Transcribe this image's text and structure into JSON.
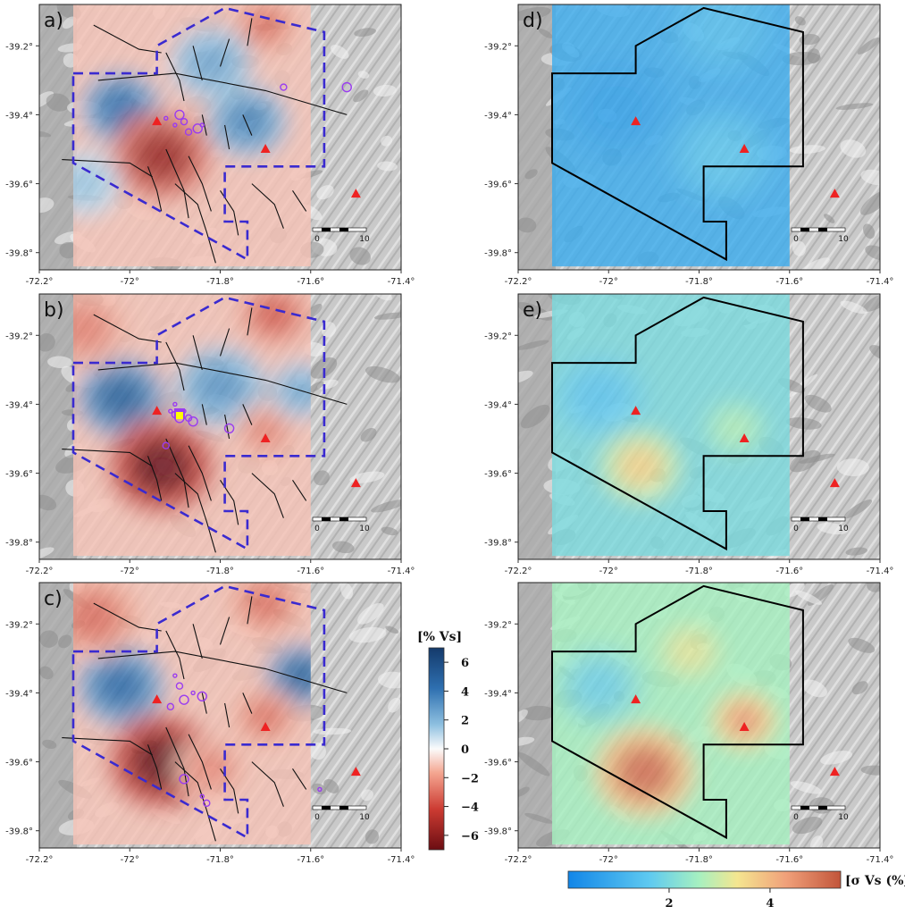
{
  "chart_data": [
    {
      "type": "heatmap",
      "panel": "a)",
      "variable": "dVs",
      "xlim": [
        -72.2,
        -71.4
      ],
      "ylim": [
        -39.85,
        -39.08
      ],
      "xticks": [
        "-72.2°",
        "-72°",
        "-71.8°",
        "-71.6°",
        "-71.4°"
      ],
      "yticks": [
        "-39.2°",
        "-39.4°",
        "-39.6°",
        "-39.8°"
      ],
      "volcanoes": [
        [
          -71.94,
          -39.42
        ],
        [
          -71.7,
          -39.5
        ],
        [
          -71.5,
          -39.63
        ]
      ],
      "earthquakes": [
        [
          -71.9,
          -39.43
        ],
        [
          -71.88,
          -39.42
        ],
        [
          -71.85,
          -39.44
        ],
        [
          -71.92,
          -39.41
        ],
        [
          -71.87,
          -39.45
        ],
        [
          -71.89,
          -39.4
        ],
        [
          -71.84,
          -39.43
        ],
        [
          -71.66,
          -39.32
        ],
        [
          -71.52,
          -39.32
        ]
      ],
      "anomalies": [
        {
          "lon": -72.02,
          "lat": -39.38,
          "r": 0.09,
          "v": 4.5
        },
        {
          "lon": -71.93,
          "lat": -39.52,
          "r": 0.11,
          "v": -5.5
        },
        {
          "lon": -71.74,
          "lat": -39.42,
          "r": 0.09,
          "v": 3.5
        },
        {
          "lon": -71.7,
          "lat": -39.14,
          "r": 0.07,
          "v": -3.0
        },
        {
          "lon": -71.82,
          "lat": -39.25,
          "r": 0.09,
          "v": 2.5
        },
        {
          "lon": -72.1,
          "lat": -39.6,
          "r": 0.08,
          "v": 1.5
        }
      ]
    },
    {
      "type": "heatmap",
      "panel": "b)",
      "variable": "dVs",
      "xlim": [
        -72.2,
        -71.4
      ],
      "ylim": [
        -39.85,
        -39.08
      ],
      "xticks": [
        "-72.2°",
        "-72°",
        "-71.8°",
        "-71.6°",
        "-71.4°"
      ],
      "yticks": [
        "-39.2°",
        "-39.4°",
        "-39.6°",
        "-39.8°"
      ],
      "volcanoes": [
        [
          -71.94,
          -39.42
        ],
        [
          -71.7,
          -39.5
        ],
        [
          -71.5,
          -39.63
        ]
      ],
      "earthquakes": [
        [
          -71.91,
          -39.42
        ],
        [
          -71.9,
          -39.43
        ],
        [
          -71.89,
          -39.44
        ],
        [
          -71.88,
          -39.42
        ],
        [
          -71.87,
          -39.44
        ],
        [
          -71.86,
          -39.45
        ],
        [
          -71.9,
          -39.4
        ],
        [
          -71.92,
          -39.52
        ],
        [
          -71.78,
          -39.47
        ]
      ],
      "anomalies": [
        {
          "lon": -72.02,
          "lat": -39.38,
          "r": 0.1,
          "v": 5.0
        },
        {
          "lon": -71.93,
          "lat": -39.58,
          "r": 0.12,
          "v": -7.0
        },
        {
          "lon": -71.8,
          "lat": -39.35,
          "r": 0.1,
          "v": 3.0
        },
        {
          "lon": -71.7,
          "lat": -39.48,
          "r": 0.07,
          "v": -2.5
        },
        {
          "lon": -71.68,
          "lat": -39.14,
          "r": 0.08,
          "v": -3.5
        },
        {
          "lon": -71.62,
          "lat": -39.36,
          "r": 0.07,
          "v": 2.5
        },
        {
          "lon": -72.1,
          "lat": -39.18,
          "r": 0.1,
          "v": -2.5
        }
      ]
    },
    {
      "type": "heatmap",
      "panel": "c)",
      "variable": "dVs",
      "xlim": [
        -72.2,
        -71.4
      ],
      "ylim": [
        -39.85,
        -39.08
      ],
      "xticks": [
        "-72.2°",
        "-72°",
        "-71.8°",
        "-71.6°",
        "-71.4°"
      ],
      "yticks": [
        "-39.2°",
        "-39.4°",
        "-39.6°",
        "-39.8°"
      ],
      "volcanoes": [
        [
          -71.94,
          -39.42
        ],
        [
          -71.7,
          -39.5
        ],
        [
          -71.5,
          -39.63
        ]
      ],
      "earthquakes": [
        [
          -71.9,
          -39.35
        ],
        [
          -71.89,
          -39.38
        ],
        [
          -71.88,
          -39.42
        ],
        [
          -71.86,
          -39.4
        ],
        [
          -71.91,
          -39.44
        ],
        [
          -71.84,
          -39.41
        ],
        [
          -71.84,
          -39.7
        ],
        [
          -71.83,
          -39.72
        ],
        [
          -71.88,
          -39.65
        ],
        [
          -71.58,
          -39.68
        ]
      ],
      "anomalies": [
        {
          "lon": -72.02,
          "lat": -39.38,
          "r": 0.1,
          "v": 4.5
        },
        {
          "lon": -71.93,
          "lat": -39.6,
          "r": 0.12,
          "v": -7.0
        },
        {
          "lon": -71.62,
          "lat": -39.35,
          "r": 0.08,
          "v": 5.0
        },
        {
          "lon": -71.7,
          "lat": -39.47,
          "r": 0.07,
          "v": -3.0
        },
        {
          "lon": -72.08,
          "lat": -39.18,
          "r": 0.1,
          "v": -3.0
        },
        {
          "lon": -71.7,
          "lat": -39.14,
          "r": 0.08,
          "v": -3.0
        },
        {
          "lon": -71.82,
          "lat": -39.62,
          "r": 0.08,
          "v": -2.5
        }
      ]
    },
    {
      "type": "heatmap",
      "panel": "d)",
      "variable": "sigma",
      "xlim": [
        -72.2,
        -71.4
      ],
      "ylim": [
        -39.85,
        -39.08
      ],
      "xticks": [
        "-72.2°",
        "-72°",
        "-71.8°",
        "-71.6°",
        "-71.4°"
      ],
      "yticks": [
        "-39.2°",
        "-39.4°",
        "-39.6°",
        "-39.8°"
      ],
      "volcanoes": [
        [
          -71.94,
          -39.42
        ],
        [
          -71.7,
          -39.5
        ],
        [
          -71.5,
          -39.63
        ]
      ],
      "base": 0.9,
      "anomalies": [
        {
          "lon": -71.98,
          "lat": -39.38,
          "r": 0.12,
          "v": -0.3
        },
        {
          "lon": -71.75,
          "lat": -39.52,
          "r": 0.12,
          "v": 0.6
        },
        {
          "lon": -71.75,
          "lat": -39.15,
          "r": 0.12,
          "v": 0.4
        }
      ]
    },
    {
      "type": "heatmap",
      "panel": "e)",
      "variable": "sigma",
      "xlim": [
        -72.2,
        -71.4
      ],
      "ylim": [
        -39.85,
        -39.08
      ],
      "xticks": [
        "-72.2°",
        "-72°",
        "-71.8°",
        "-71.6°",
        "-71.4°"
      ],
      "yticks": [
        "-39.2°",
        "-39.4°",
        "-39.6°",
        "-39.8°"
      ],
      "volcanoes": [
        [
          -71.94,
          -39.42
        ],
        [
          -71.7,
          -39.5
        ],
        [
          -71.5,
          -39.63
        ]
      ],
      "base": 2.0,
      "anomalies": [
        {
          "lon": -71.93,
          "lat": -39.58,
          "r": 0.09,
          "v": 1.6
        },
        {
          "lon": -71.72,
          "lat": -39.47,
          "r": 0.07,
          "v": 0.7
        },
        {
          "lon": -72.02,
          "lat": -39.38,
          "r": 0.1,
          "v": -0.5
        }
      ]
    },
    {
      "type": "heatmap",
      "panel": "",
      "variable": "sigma",
      "xlim": [
        -72.2,
        -71.4
      ],
      "ylim": [
        -39.85,
        -39.08
      ],
      "xticks": [
        "-72.2°",
        "-72°",
        "-71.8°",
        "-71.6°",
        "-71.4°"
      ],
      "yticks": [
        "-39.2°",
        "-39.4°",
        "-39.6°",
        "-39.8°"
      ],
      "volcanoes": [
        [
          -71.94,
          -39.42
        ],
        [
          -71.7,
          -39.5
        ],
        [
          -71.5,
          -39.63
        ]
      ],
      "base": 2.6,
      "anomalies": [
        {
          "lon": -71.92,
          "lat": -39.63,
          "r": 0.11,
          "v": 2.4
        },
        {
          "lon": -71.7,
          "lat": -39.48,
          "r": 0.07,
          "v": 1.8
        },
        {
          "lon": -72.02,
          "lat": -39.38,
          "r": 0.1,
          "v": -0.8
        },
        {
          "lon": -71.82,
          "lat": -39.28,
          "r": 0.07,
          "v": 0.6
        }
      ]
    }
  ],
  "colorbar_vs": {
    "title": "[% Vs]",
    "range": [
      -7,
      7
    ],
    "ticks": [
      6,
      4,
      2,
      0,
      -2,
      -4,
      -6
    ],
    "tick_labels": [
      "6",
      "4",
      "2",
      "0",
      "−2",
      "−4",
      "−6"
    ]
  },
  "colorbar_sigma": {
    "title": "[σ Vs (%) ]",
    "range": [
      0,
      5.4
    ],
    "ticks": [
      2,
      4
    ],
    "tick_labels": [
      "2",
      "4"
    ]
  },
  "scale_bar": {
    "labels": [
      "0",
      "10"
    ]
  },
  "colors": {
    "volcano": "#ee2222",
    "earthquake": "#9a3cf0",
    "fault": "#111111",
    "region_dashed": "#3a2ad0",
    "region_solid": "#000000",
    "cluster_b": "#ffff00"
  }
}
